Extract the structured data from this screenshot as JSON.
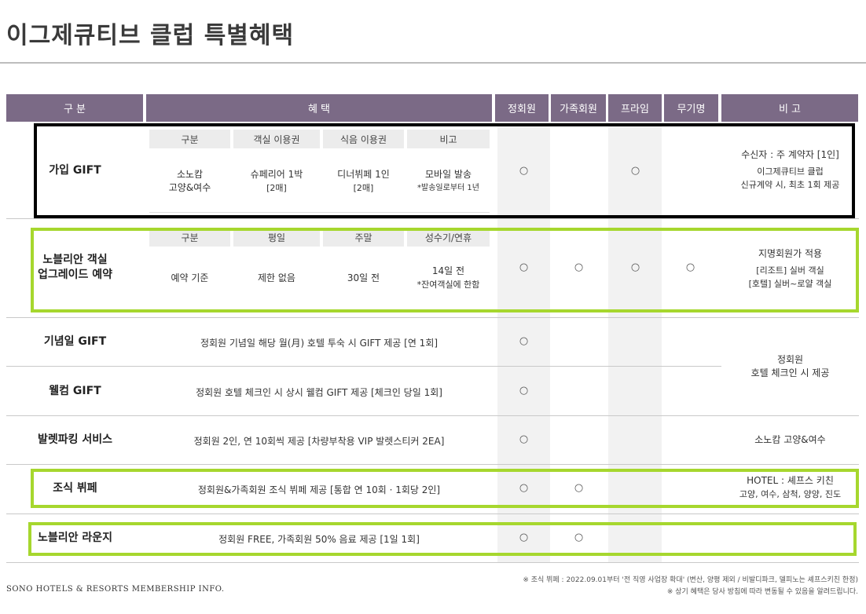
{
  "title": "이그제큐티브 클럽 특별혜택",
  "header": {
    "category": "구 분",
    "benefit": "혜 택",
    "regular": "정회원",
    "family": "가족회원",
    "prime": "프라임",
    "anonymous": "무기명",
    "remark": "비 고"
  },
  "mark": "○",
  "rows": {
    "join_gift": {
      "label": "가입 GIFT",
      "sub_headers": [
        "구분",
        "객실 이용권",
        "식음 이용권",
        "비고"
      ],
      "cells": [
        [
          "소노캄",
          "고양&여수"
        ],
        [
          "슈페리어 1박",
          "[2매]"
        ],
        [
          "디너뷔페 1인",
          "[2매]"
        ],
        [
          "모바일 발송",
          "*발송일로부터 1년"
        ]
      ],
      "note": [
        "수신자 : 주 계약자 [1인]",
        "이그제큐티브 클럽",
        "신규계약 시, 최초 1회 제공"
      ]
    },
    "upgrade": {
      "label": [
        "노블리안 객실",
        "업그레이드 예약"
      ],
      "sub_headers": [
        "구분",
        "평일",
        "주말",
        "성수기/연휴"
      ],
      "cells": [
        [
          "예약 기준"
        ],
        [
          "제한 없음"
        ],
        [
          "30일 전"
        ],
        [
          "14일 전",
          "*잔여객실에 한함"
        ]
      ],
      "note": [
        "지명회원가 적용",
        "[리조트] 실버 객실",
        "[호텔] 실버~로얄 객실"
      ]
    },
    "anniversary": {
      "label": "기념일 GIFT",
      "benefit": "정회원 기념일 해당 월(月) 호텔 투숙 시 GIFT 제공 [연 1회]"
    },
    "welcome": {
      "label": "웰컴 GIFT",
      "benefit": "정회원 호텔 체크인 시 상시 웰컴 GIFT 제공 [체크인 당일 1회]"
    },
    "gift_note": [
      "정회원",
      "호텔 체크인 시 제공"
    ],
    "valet": {
      "label": "발렛파킹 서비스",
      "benefit": "정회원 2인, 연 10회씩 제공 [차량부착용 VIP 발렛스티커 2EA]",
      "note": "소노캄 고양&여수"
    },
    "breakfast": {
      "label": "조식 뷔페",
      "benefit": "정회원&가족회원 조식 뷔페 제공 [통합 연 10회 · 1회당 2인]",
      "note": [
        "HOTEL : 셰프스 키친",
        "고양, 여수, 삼척, 양양, 진도"
      ]
    },
    "lounge": {
      "label": "노블리안 라운지",
      "benefit": "정회원 FREE, 가족회원 50% 음료 제공 [1일 1회]"
    }
  },
  "footer": {
    "brand": "SONO HOTELS & RESORTS MEMBERSHIP INFO.",
    "note1": "※ 조식 뷔페 : 2022.09.01부터 '전 직영 사업장 확대' (변산, 양평 제외 / 비발디파크, 델피노는 셰프스키친 한정)",
    "note2": "※ 상기 혜택은 당사 방침에 따라 변동될 수 있음을 알려드립니다."
  },
  "colors": {
    "header": "#7b6a86",
    "highlight_black": "#000000",
    "highlight_green": "#a6d72e"
  }
}
